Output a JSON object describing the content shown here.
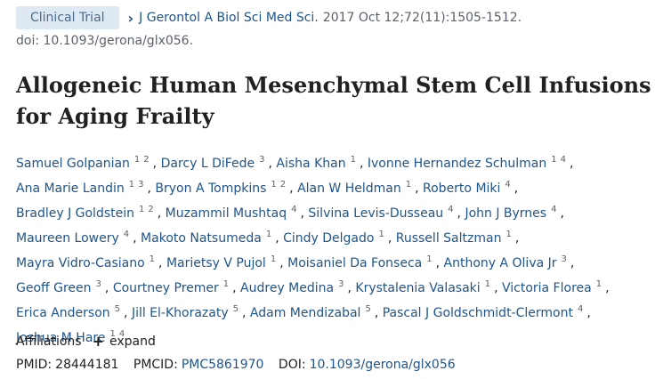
{
  "header": {
    "badge": "Clinical Trial",
    "journal": "J Gerontol A Biol Sci Med Sci.",
    "citation": "2017 Oct 12;72(11):1505-1512.",
    "doi_line": "doi: 10.1093/gerona/glx056."
  },
  "title": "Allogeneic Human Mesenchymal Stem Cell Infusions for Aging Frailty",
  "authors": [
    {
      "name": "Samuel Golpanian",
      "affs": [
        "1",
        "2"
      ]
    },
    {
      "name": "Darcy L DiFede",
      "affs": [
        "3"
      ]
    },
    {
      "name": "Aisha Khan",
      "affs": [
        "1"
      ]
    },
    {
      "name": "Ivonne Hernandez Schulman",
      "affs": [
        "1",
        "4"
      ]
    },
    {
      "name": "Ana Marie Landin",
      "affs": [
        "1",
        "3"
      ]
    },
    {
      "name": "Bryon A Tompkins",
      "affs": [
        "1",
        "2"
      ]
    },
    {
      "name": "Alan W Heldman",
      "affs": [
        "1"
      ]
    },
    {
      "name": "Roberto Miki",
      "affs": [
        "4"
      ]
    },
    {
      "name": "Bradley J Goldstein",
      "affs": [
        "1",
        "2"
      ]
    },
    {
      "name": "Muzammil Mushtaq",
      "affs": [
        "4"
      ]
    },
    {
      "name": "Silvina Levis-Dusseau",
      "affs": [
        "4"
      ]
    },
    {
      "name": "John J Byrnes",
      "affs": [
        "4"
      ]
    },
    {
      "name": "Maureen Lowery",
      "affs": [
        "4"
      ]
    },
    {
      "name": "Makoto Natsumeda",
      "affs": [
        "1"
      ]
    },
    {
      "name": "Cindy Delgado",
      "affs": [
        "1"
      ]
    },
    {
      "name": "Russell Saltzman",
      "affs": [
        "1"
      ]
    },
    {
      "name": "Mayra Vidro-Casiano",
      "affs": [
        "1"
      ]
    },
    {
      "name": "Marietsy V Pujol",
      "affs": [
        "1"
      ]
    },
    {
      "name": "Moisaniel Da Fonseca",
      "affs": [
        "1"
      ]
    },
    {
      "name": "Anthony A Oliva Jr",
      "affs": [
        "3"
      ]
    },
    {
      "name": "Geoff Green",
      "affs": [
        "3"
      ]
    },
    {
      "name": "Courtney Premer",
      "affs": [
        "1"
      ]
    },
    {
      "name": "Audrey Medina",
      "affs": [
        "3"
      ]
    },
    {
      "name": "Krystalenia Valasaki",
      "affs": [
        "1"
      ]
    },
    {
      "name": "Victoria Florea",
      "affs": [
        "1"
      ]
    },
    {
      "name": "Erica Anderson",
      "affs": [
        "5"
      ]
    },
    {
      "name": "Jill El-Khorazaty",
      "affs": [
        "5"
      ]
    },
    {
      "name": "Adam Mendizabal",
      "affs": [
        "5"
      ]
    },
    {
      "name": "Pascal J Goldschmidt-Clermont",
      "affs": [
        "4"
      ]
    },
    {
      "name": "Joshua M Hare",
      "affs": [
        "1",
        "4"
      ]
    }
  ],
  "affiliations": {
    "label": "Affiliations",
    "expand_label": "expand",
    "expand_icon": "+"
  },
  "identifiers": {
    "pmid_label": "PMID:",
    "pmid": "28444181",
    "pmcid_label": "PMCID:",
    "pmcid": "PMC5861970",
    "doi_label": "DOI:",
    "doi": "10.1093/gerona/glx056"
  },
  "colors": {
    "link": "#20558a",
    "badge_bg": "#dfe9f3",
    "text": "#212121",
    "muted": "#5b616b"
  }
}
